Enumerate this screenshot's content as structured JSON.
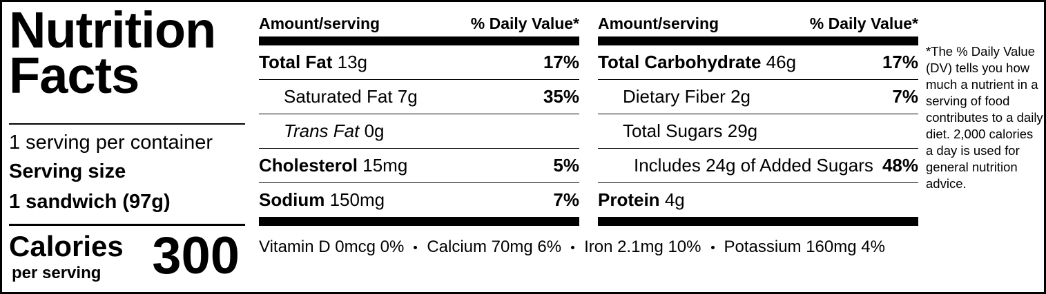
{
  "title": "Nutrition Facts",
  "servings": "1 serving per container",
  "serving_size_label": "Serving size",
  "serving_size": "1 sandwich (97g)",
  "calories_label": "Calories",
  "calories_sub": "per serving",
  "calories": 300,
  "columns": [
    {
      "header": {
        "amount": "Amount/serving",
        "dv": "% Daily Value*"
      },
      "rows": [
        {
          "name": "Total Fat",
          "amount": "13g",
          "dv": "17%"
        },
        {
          "name": "Saturated Fat",
          "amount": "7g",
          "dv": "35%"
        },
        {
          "name": "Trans Fat",
          "amount": "0g"
        },
        {
          "name": "Cholesterol",
          "amount": "15mg",
          "dv": "5%"
        },
        {
          "name": "Sodium",
          "amount": "150mg",
          "dv": "7%"
        }
      ]
    },
    {
      "header": {
        "amount": "Amount/serving",
        "dv": "% Daily Value*"
      },
      "rows": [
        {
          "name": "Total Carbohydrate",
          "amount": "46g",
          "dv": "17%"
        },
        {
          "name": "Dietary Fiber",
          "amount": "2g",
          "dv": "7%"
        },
        {
          "name": "Total Sugars",
          "amount": "29g"
        },
        {
          "name": "Includes 24g of Added Sugars",
          "dv": "48%"
        },
        {
          "name": "Protein",
          "amount": "4g"
        }
      ]
    }
  ],
  "vitamins": [
    "Vitamin D 0mcg 0%",
    "Calcium 70mg 6%",
    "Iron 2.1mg 10%",
    "Potassium 160mg 4%"
  ],
  "footnote": "*The % Daily Value (DV) tells you how much a nutrient in a serving of food contributes to a daily diet. 2,000 calories a day is used for general nutrition advice."
}
